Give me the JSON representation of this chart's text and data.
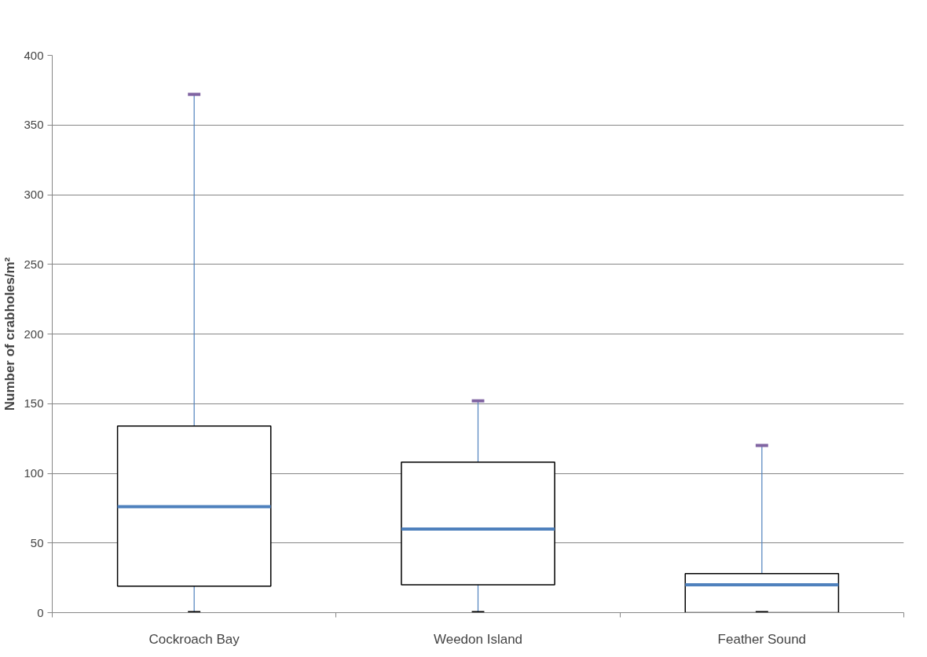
{
  "chart_data": {
    "type": "box",
    "ylabel": "Number of crabholes/m²",
    "categories": [
      "Cockroach Bay",
      "Weedon Island",
      "Feather Sound"
    ],
    "boxes": [
      {
        "low": 0,
        "q1": 19,
        "median": 76,
        "q3": 134,
        "high": 372
      },
      {
        "low": 0,
        "q1": 20,
        "median": 60,
        "q3": 108,
        "high": 152
      },
      {
        "low": 0,
        "q1": 0,
        "median": 20,
        "q3": 28,
        "high": 120
      }
    ],
    "color": "#ffffff",
    "ylim": [
      0,
      400
    ],
    "yticks": [
      0,
      50,
      100,
      150,
      200,
      250,
      300,
      350,
      400
    ],
    "grid": "y"
  }
}
